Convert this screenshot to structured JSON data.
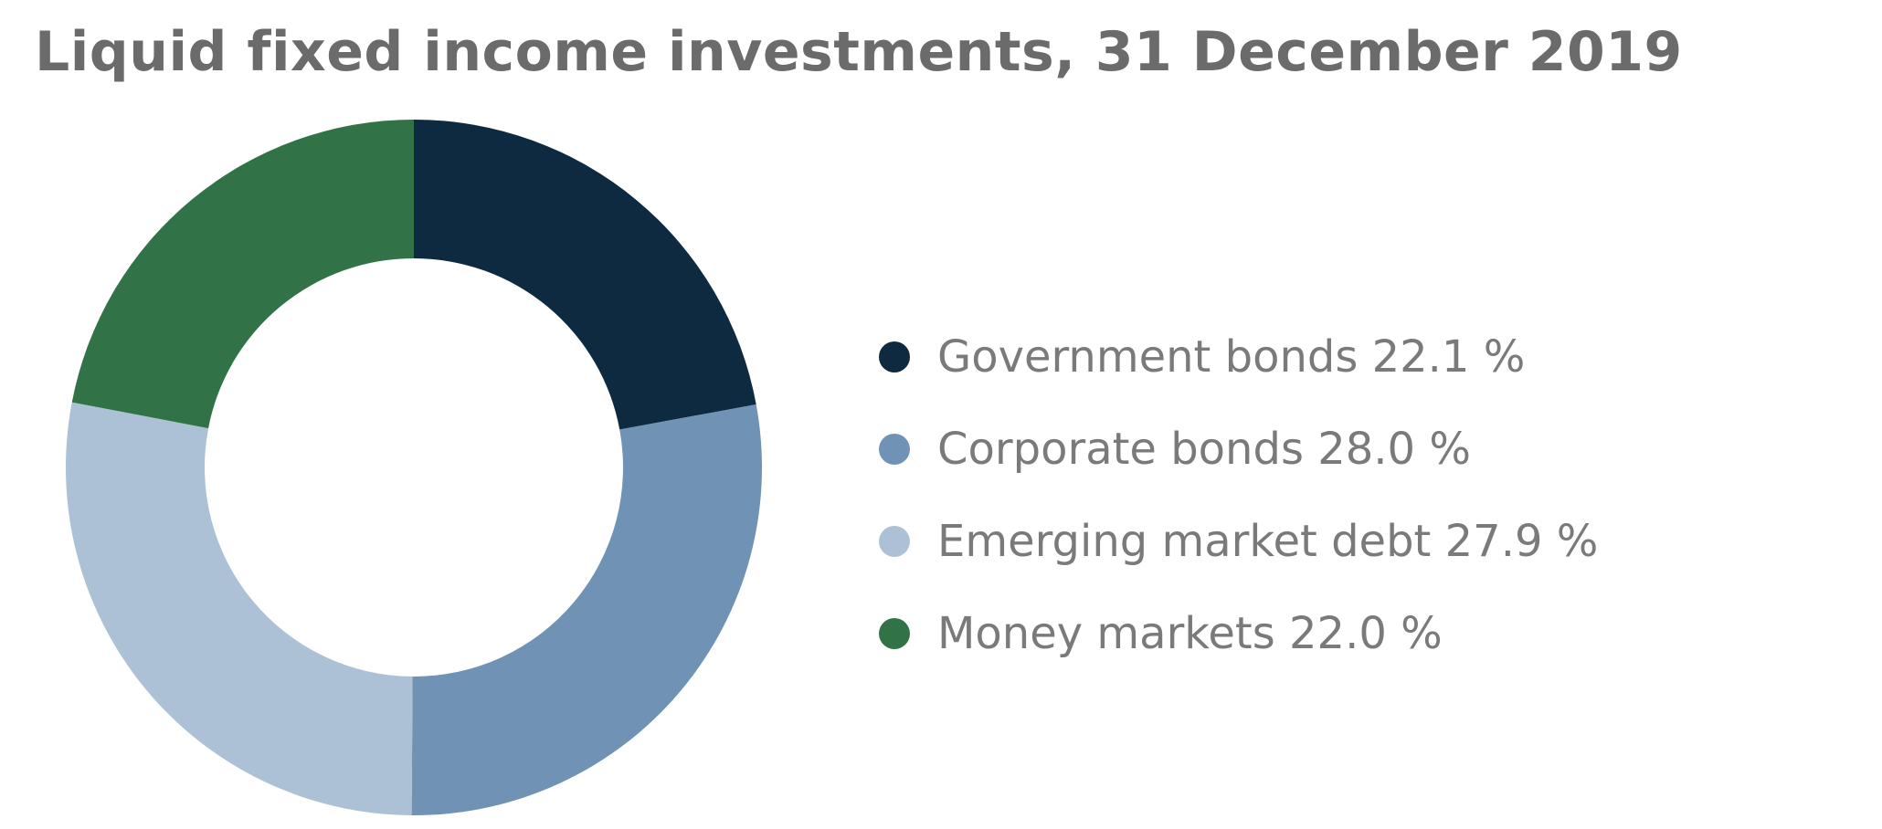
{
  "chart_data": {
    "type": "pie",
    "variant": "donut",
    "title": "Liquid fixed income investments, 31 December 2019",
    "unit": "%",
    "legend_position": "right",
    "slices": [
      {
        "label": "Government bonds",
        "value": 22.1,
        "display": "Government bonds 22.1 %",
        "color": "#0d2a40"
      },
      {
        "label": "Corporate bonds",
        "value": 28.0,
        "display": "Corporate bonds 28.0 %",
        "color": "#7092b5"
      },
      {
        "label": "Emerging market debt",
        "value": 27.9,
        "display": "Emerging market debt 27.9 %",
        "color": "#adc1d6"
      },
      {
        "label": "Money markets",
        "value": 22.0,
        "display": "Money markets 22.0 %",
        "color": "#317347"
      }
    ]
  }
}
